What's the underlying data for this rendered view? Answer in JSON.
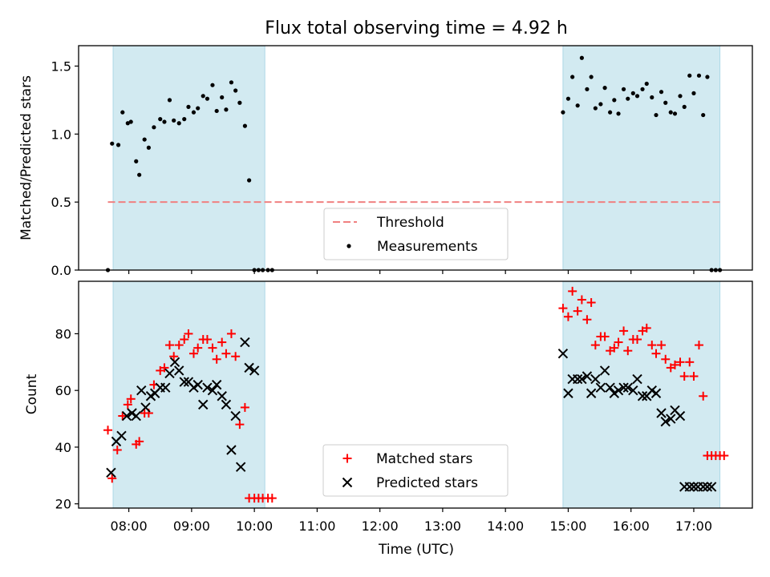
{
  "title": "Flux total observing time = 4.92 h",
  "colors": {
    "shade": "#add8e6",
    "threshold": "#f08080",
    "measurement": "#000000",
    "matched": "#ff0000",
    "predicted": "#000000"
  },
  "chart_data": [
    {
      "type": "scatter",
      "panel": "top",
      "ylabel": "Matched/Predicted stars",
      "ylim": [
        0,
        1.65
      ],
      "yticks": [
        0.0,
        0.5,
        1.0,
        1.5
      ],
      "ytick_labels": [
        "0.0",
        "0.5",
        "1.0",
        "1.5"
      ],
      "shaded_intervals": [
        [
          "07:45",
          "10:10"
        ],
        [
          "14:55",
          "17:25"
        ]
      ],
      "legend": {
        "placement": "lower-center",
        "entries": [
          "Threshold",
          "Measurements"
        ]
      },
      "threshold": {
        "name": "Threshold",
        "value": 0.5,
        "x_range": [
          "07:40",
          "17:25"
        ]
      },
      "series": [
        {
          "name": "Measurements",
          "marker": "dot",
          "x": [
            "07:40",
            "07:44",
            "07:50",
            "07:54",
            "07:59",
            "08:02",
            "08:07",
            "08:10",
            "08:15",
            "08:19",
            "08:24",
            "08:30",
            "08:34",
            "08:39",
            "08:43",
            "08:48",
            "08:53",
            "08:57",
            "09:02",
            "09:06",
            "09:11",
            "09:15",
            "09:20",
            "09:24",
            "09:29",
            "09:33",
            "09:38",
            "09:42",
            "09:46",
            "09:51",
            "09:55",
            "10:00",
            "10:04",
            "10:08",
            "10:13",
            "10:17",
            "14:55",
            "15:00",
            "15:04",
            "15:09",
            "15:13",
            "15:18",
            "15:22",
            "15:26",
            "15:31",
            "15:35",
            "15:40",
            "15:44",
            "15:48",
            "15:53",
            "15:57",
            "16:02",
            "16:06",
            "16:11",
            "16:15",
            "16:20",
            "16:24",
            "16:29",
            "16:33",
            "16:38",
            "16:42",
            "16:47",
            "16:51",
            "16:56",
            "17:00",
            "17:05",
            "17:09",
            "17:13",
            "17:17",
            "17:21",
            "17:25"
          ],
          "y": [
            0.0,
            0.93,
            0.92,
            1.16,
            1.08,
            1.09,
            0.8,
            0.7,
            0.96,
            0.9,
            1.05,
            1.11,
            1.09,
            1.25,
            1.1,
            1.08,
            1.11,
            1.2,
            1.16,
            1.19,
            1.28,
            1.26,
            1.36,
            1.17,
            1.27,
            1.18,
            1.38,
            1.32,
            1.23,
            1.06,
            0.66,
            0.0,
            0.0,
            0.0,
            0.0,
            0.0,
            1.16,
            1.26,
            1.42,
            1.21,
            1.56,
            1.33,
            1.42,
            1.19,
            1.22,
            1.34,
            1.16,
            1.25,
            1.15,
            1.33,
            1.26,
            1.3,
            1.28,
            1.33,
            1.37,
            1.27,
            1.14,
            1.31,
            1.23,
            1.16,
            1.15,
            1.28,
            1.2,
            1.43,
            1.3,
            1.43,
            1.14,
            1.42,
            0.0,
            0.0,
            0.0
          ]
        }
      ]
    },
    {
      "type": "scatter",
      "panel": "bottom",
      "xlabel": "Time (UTC)",
      "ylabel": "Count",
      "xlim": [
        "07:12",
        "17:56"
      ],
      "ylim": [
        18.5,
        98.5
      ],
      "yticks": [
        20,
        40,
        60,
        80
      ],
      "ytick_labels": [
        "20",
        "40",
        "60",
        "80"
      ],
      "xtick_labels": [
        "08:00",
        "09:00",
        "10:00",
        "11:00",
        "12:00",
        "13:00",
        "14:00",
        "15:00",
        "16:00",
        "17:00"
      ],
      "shaded_intervals": [
        [
          "07:45",
          "10:10"
        ],
        [
          "14:55",
          "17:25"
        ]
      ],
      "legend": {
        "placement": "lower-center",
        "entries": [
          "Matched stars",
          "Predicted stars"
        ]
      },
      "series": [
        {
          "name": "Matched stars",
          "marker": "plus",
          "x": [
            "07:40",
            "07:44",
            "07:49",
            "07:54",
            "07:59",
            "08:02",
            "08:07",
            "08:10",
            "08:15",
            "08:19",
            "08:24",
            "08:30",
            "08:34",
            "08:39",
            "08:43",
            "08:48",
            "08:53",
            "08:57",
            "09:02",
            "09:06",
            "09:11",
            "09:15",
            "09:20",
            "09:24",
            "09:29",
            "09:33",
            "09:38",
            "09:42",
            "09:46",
            "09:51",
            "09:55",
            "10:00",
            "10:04",
            "10:08",
            "10:13",
            "10:17",
            "14:55",
            "15:00",
            "15:04",
            "15:09",
            "15:13",
            "15:18",
            "15:22",
            "15:26",
            "15:31",
            "15:35",
            "15:40",
            "15:44",
            "15:48",
            "15:53",
            "15:57",
            "16:02",
            "16:06",
            "16:11",
            "16:15",
            "16:20",
            "16:24",
            "16:29",
            "16:33",
            "16:38",
            "16:42",
            "16:47",
            "16:51",
            "16:56",
            "17:00",
            "17:05",
            "17:09",
            "17:13",
            "17:17",
            "17:21",
            "17:25",
            "17:29"
          ],
          "y": [
            46,
            29,
            39,
            51,
            55,
            57,
            41,
            42,
            52,
            52,
            62,
            67,
            68,
            76,
            72,
            76,
            78,
            80,
            73,
            75,
            78,
            78,
            75,
            71,
            77,
            73,
            80,
            72,
            48,
            54,
            22,
            22,
            22,
            22,
            22,
            22,
            89,
            86,
            95,
            88,
            92,
            85,
            91,
            76,
            79,
            79,
            74,
            75,
            77,
            81,
            74,
            78,
            78,
            81,
            82,
            76,
            73,
            76,
            71,
            68,
            69,
            70,
            65,
            70,
            65,
            76,
            58,
            37,
            37,
            37,
            37,
            37
          ],
          "y_note": ""
        },
        {
          "name": "Predicted stars",
          "marker": "x",
          "x": [
            "07:43",
            "07:48",
            "07:53",
            "07:58",
            "08:03",
            "08:07",
            "08:12",
            "08:16",
            "08:21",
            "08:25",
            "08:30",
            "08:35",
            "08:39",
            "08:44",
            "08:48",
            "08:53",
            "08:57",
            "09:02",
            "09:06",
            "09:11",
            "09:15",
            "09:20",
            "09:24",
            "09:29",
            "09:33",
            "09:38",
            "09:42",
            "09:47",
            "09:51",
            "09:55",
            "10:00",
            "14:55",
            "15:00",
            "15:04",
            "15:09",
            "15:13",
            "15:18",
            "15:22",
            "15:26",
            "15:31",
            "15:35",
            "15:40",
            "15:44",
            "15:48",
            "15:53",
            "15:57",
            "16:02",
            "16:06",
            "16:11",
            "16:15",
            "16:20",
            "16:24",
            "16:29",
            "16:33",
            "16:38",
            "16:42",
            "16:47",
            "16:51",
            "16:56",
            "17:00",
            "17:04",
            "17:09",
            "17:13",
            "17:17"
          ],
          "y": [
            31,
            42,
            44,
            51,
            52,
            51,
            60,
            54,
            58,
            59,
            61,
            61,
            66,
            70,
            67,
            63,
            63,
            61,
            62,
            55,
            61,
            60,
            62,
            58,
            55,
            39,
            51,
            33,
            77,
            68,
            67,
            73,
            59,
            64,
            64,
            64,
            65,
            59,
            64,
            61,
            67,
            61,
            59,
            60,
            61,
            61,
            60,
            64,
            58,
            58,
            60,
            59,
            52,
            49,
            50,
            53,
            51,
            26,
            26,
            26,
            26,
            26,
            26,
            26
          ],
          "y_note": ""
        }
      ]
    }
  ]
}
